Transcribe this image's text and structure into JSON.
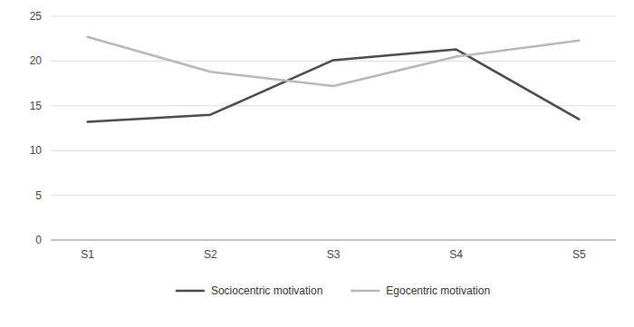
{
  "chart_data": {
    "type": "line",
    "categories": [
      "S1",
      "S2",
      "S3",
      "S4",
      "S5"
    ],
    "series": [
      {
        "name": "Sociocentric motivation",
        "color": "#4a4a4a",
        "values": [
          13.2,
          14.0,
          20.1,
          21.3,
          13.5
        ]
      },
      {
        "name": "Egocentric motivation",
        "color": "#b8b8b8",
        "values": [
          22.7,
          18.8,
          17.2,
          20.5,
          22.3
        ]
      }
    ],
    "ylim": [
      0,
      25
    ],
    "yticks": [
      0,
      5,
      10,
      15,
      20,
      25
    ],
    "grid": true,
    "legend": "bottom"
  }
}
